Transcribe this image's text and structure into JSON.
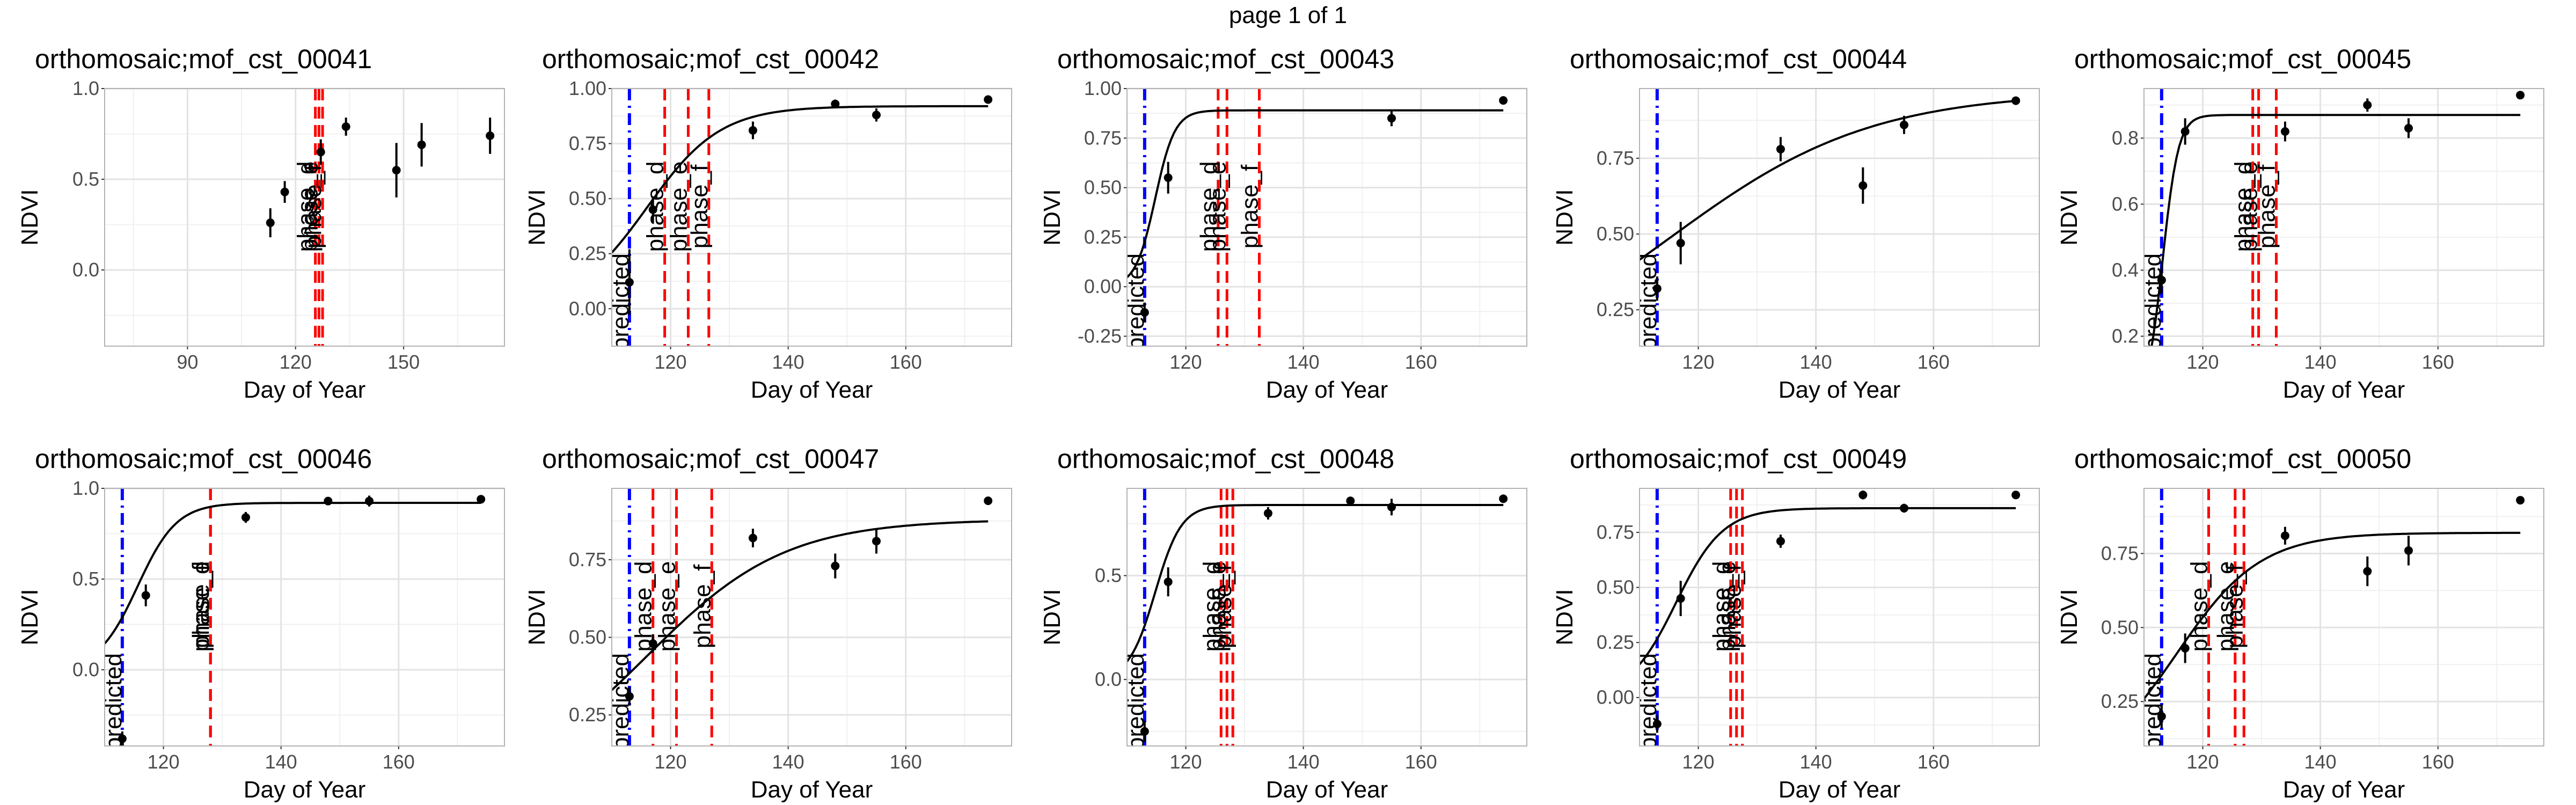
{
  "page_title": "page 1 of 1",
  "chart_data": [
    {
      "type": "scatter",
      "title": "orthomosaic;mof_cst_00041",
      "xlabel": "Day of Year",
      "ylabel": "NDVI",
      "xlim": [
        67,
        178
      ],
      "ylim": [
        -0.42,
        1.0
      ],
      "xticks": [
        90,
        120,
        150
      ],
      "yticks": [
        0.0,
        0.5,
        1.0
      ],
      "ytick_labels": [
        "0.0",
        "0.5",
        "1.0"
      ],
      "grid": true,
      "points": [
        {
          "x": 113,
          "y": 0.26,
          "err": 0.08
        },
        {
          "x": 117,
          "y": 0.43,
          "err": 0.06
        },
        {
          "x": 127,
          "y": 0.65,
          "err": 0.07
        },
        {
          "x": 134,
          "y": 0.79,
          "err": 0.05
        },
        {
          "x": 148,
          "y": 0.55,
          "err": 0.15
        },
        {
          "x": 155,
          "y": 0.69,
          "err": 0.12
        },
        {
          "x": 174,
          "y": 0.74,
          "err": 0.1
        }
      ],
      "curve": null,
      "predicted": null,
      "phases": [
        {
          "x": 125.5,
          "label": "phase_d"
        },
        {
          "x": 126.5,
          "label": "phase_e"
        },
        {
          "x": 127.5,
          "label": "phase_f"
        }
      ]
    },
    {
      "type": "scatter",
      "title": "orthomosaic;mof_cst_00042",
      "xlabel": "Day of Year",
      "ylabel": "NDVI",
      "xlim": [
        110,
        178
      ],
      "ylim": [
        -0.17,
        1.0
      ],
      "xticks": [
        120,
        140,
        160
      ],
      "yticks": [
        0.0,
        0.25,
        0.5,
        0.75,
        1.0
      ],
      "ytick_labels": [
        "0.00",
        "0.25",
        "0.50",
        "0.75",
        "1.00"
      ],
      "grid": true,
      "points": [
        {
          "x": 113,
          "y": 0.12,
          "err": 0.15
        },
        {
          "x": 117,
          "y": 0.45,
          "err": 0.06
        },
        {
          "x": 134,
          "y": 0.81,
          "err": 0.04
        },
        {
          "x": 148,
          "y": 0.93,
          "err": 0.02
        },
        {
          "x": 155,
          "y": 0.88,
          "err": 0.03
        },
        {
          "x": 174,
          "y": 0.95,
          "err": 0.01
        }
      ],
      "curve": {
        "xmin": 110,
        "xmax": 174,
        "L": 0.92,
        "k": 0.16,
        "x0": 116
      },
      "predicted": {
        "x": 113,
        "label": "predicted"
      },
      "phases": [
        {
          "x": 119,
          "label": "phase_d"
        },
        {
          "x": 123,
          "label": "phase_e"
        },
        {
          "x": 126.5,
          "label": "phase_f"
        }
      ]
    },
    {
      "type": "scatter",
      "title": "orthomosaic;mof_cst_00043",
      "xlabel": "Day of Year",
      "ylabel": "NDVI",
      "xlim": [
        110,
        178
      ],
      "ylim": [
        -0.3,
        1.0
      ],
      "xticks": [
        120,
        140,
        160
      ],
      "yticks": [
        -0.25,
        0.0,
        0.25,
        0.5,
        0.75,
        1.0
      ],
      "ytick_labels": [
        "-0.25",
        "0.00",
        "0.25",
        "0.50",
        "0.75",
        "1.00"
      ],
      "grid": true,
      "points": [
        {
          "x": 113,
          "y": -0.13,
          "err": 0.05
        },
        {
          "x": 117,
          "y": 0.55,
          "err": 0.08
        },
        {
          "x": 155,
          "y": 0.85,
          "err": 0.04
        },
        {
          "x": 174,
          "y": 0.94,
          "err": 0.01
        }
      ],
      "curve": {
        "xmin": 110,
        "xmax": 174,
        "L": 0.89,
        "k": 0.6,
        "x0": 114.8
      },
      "predicted": {
        "x": 113,
        "label": "predicted"
      },
      "phases": [
        {
          "x": 125.5,
          "label": "phase_d"
        },
        {
          "x": 127,
          "label": "phase_e"
        },
        {
          "x": 132.5,
          "label": "phase_f"
        }
      ]
    },
    {
      "type": "scatter",
      "title": "orthomosaic;mof_cst_00044",
      "xlabel": "Day of Year",
      "ylabel": "NDVI",
      "xlim": [
        110,
        178
      ],
      "ylim": [
        0.13,
        0.98
      ],
      "xticks": [
        120,
        140,
        160
      ],
      "yticks": [
        0.25,
        0.5,
        0.75
      ],
      "ytick_labels": [
        "0.25",
        "0.50",
        "0.75"
      ],
      "grid": true,
      "points": [
        {
          "x": 113,
          "y": 0.32,
          "err": 0.04
        },
        {
          "x": 117,
          "y": 0.47,
          "err": 0.07
        },
        {
          "x": 134,
          "y": 0.78,
          "err": 0.04
        },
        {
          "x": 148,
          "y": 0.66,
          "err": 0.06
        },
        {
          "x": 155,
          "y": 0.86,
          "err": 0.03
        },
        {
          "x": 174,
          "y": 0.94,
          "err": 0.01
        }
      ],
      "curve": {
        "xmin": 110,
        "xmax": 174,
        "L": 0.97,
        "k": 0.058,
        "x0": 115
      },
      "predicted": {
        "x": 113,
        "label": "predicted"
      },
      "phases": []
    },
    {
      "type": "scatter",
      "title": "orthomosaic;mof_cst_00045",
      "xlabel": "Day of Year",
      "ylabel": "NDVI",
      "xlim": [
        110,
        178
      ],
      "ylim": [
        0.17,
        0.95
      ],
      "xticks": [
        120,
        140,
        160
      ],
      "yticks": [
        0.2,
        0.4,
        0.6,
        0.8
      ],
      "ytick_labels": [
        "0.2",
        "0.4",
        "0.6",
        "0.8"
      ],
      "grid": true,
      "points": [
        {
          "x": 113,
          "y": 0.37,
          "err": 0.04
        },
        {
          "x": 117,
          "y": 0.82,
          "err": 0.04
        },
        {
          "x": 134,
          "y": 0.82,
          "err": 0.03
        },
        {
          "x": 148,
          "y": 0.9,
          "err": 0.02
        },
        {
          "x": 155,
          "y": 0.83,
          "err": 0.03
        },
        {
          "x": 174,
          "y": 0.93,
          "err": 0.01
        }
      ],
      "curve": {
        "xmin": 110,
        "xmax": 174,
        "L": 0.87,
        "k": 0.75,
        "x0": 113.2
      },
      "predicted": {
        "x": 113,
        "label": "predicted"
      },
      "phases": [
        {
          "x": 128.5,
          "label": "phase_d"
        },
        {
          "x": 129.5,
          "label": "phase_e"
        },
        {
          "x": 132.5,
          "label": "phase_f"
        }
      ]
    },
    {
      "type": "scatter",
      "title": "orthomosaic;mof_cst_00046",
      "xlabel": "Day of Year",
      "ylabel": "NDVI",
      "xlim": [
        110,
        178
      ],
      "ylim": [
        -0.42,
        1.0
      ],
      "xticks": [
        120,
        140,
        160
      ],
      "yticks": [
        0.0,
        0.5,
        1.0
      ],
      "ytick_labels": [
        "0.0",
        "0.5",
        "1.0"
      ],
      "grid": true,
      "points": [
        {
          "x": 113,
          "y": -0.38,
          "err": 0.04
        },
        {
          "x": 117,
          "y": 0.41,
          "err": 0.06
        },
        {
          "x": 134,
          "y": 0.84,
          "err": 0.03
        },
        {
          "x": 148,
          "y": 0.93,
          "err": 0.02
        },
        {
          "x": 155,
          "y": 0.93,
          "err": 0.03
        },
        {
          "x": 174,
          "y": 0.94,
          "err": 0.01
        }
      ],
      "curve": {
        "xmin": 110,
        "xmax": 174,
        "L": 0.92,
        "k": 0.3,
        "x0": 115.6
      },
      "predicted": {
        "x": 113,
        "label": "predicted"
      },
      "phases": [
        {
          "x": 128,
          "label": "phase_d"
        },
        {
          "x": 128,
          "label": "phase_e"
        },
        {
          "x": 128,
          "label": "phase_f"
        }
      ]
    },
    {
      "type": "scatter",
      "title": "orthomosaic;mof_cst_00047",
      "xlabel": "Day of Year",
      "ylabel": "NDVI",
      "xlim": [
        110,
        178
      ],
      "ylim": [
        0.15,
        0.98
      ],
      "xticks": [
        120,
        140,
        160
      ],
      "yticks": [
        0.25,
        0.5,
        0.75
      ],
      "ytick_labels": [
        "0.25",
        "0.50",
        "0.75"
      ],
      "grid": true,
      "points": [
        {
          "x": 113,
          "y": 0.31,
          "err": 0.03
        },
        {
          "x": 117,
          "y": 0.48,
          "err": 0.03
        },
        {
          "x": 134,
          "y": 0.82,
          "err": 0.03
        },
        {
          "x": 148,
          "y": 0.73,
          "err": 0.04
        },
        {
          "x": 155,
          "y": 0.81,
          "err": 0.04
        },
        {
          "x": 174,
          "y": 0.94,
          "err": 0.01
        }
      ],
      "curve": {
        "xmin": 110,
        "xmax": 174,
        "L": 0.88,
        "k": 0.085,
        "x0": 116
      },
      "predicted": {
        "x": 113,
        "label": "predicted"
      },
      "phases": [
        {
          "x": 117,
          "label": "phase_d"
        },
        {
          "x": 121,
          "label": "phase_e"
        },
        {
          "x": 127,
          "label": "phase_f"
        }
      ]
    },
    {
      "type": "scatter",
      "title": "orthomosaic;mof_cst_00048",
      "xlabel": "Day of Year",
      "ylabel": "NDVI",
      "xlim": [
        110,
        178
      ],
      "ylim": [
        -0.32,
        0.92
      ],
      "xticks": [
        120,
        140,
        160
      ],
      "yticks": [
        0.0,
        0.5
      ],
      "ytick_labels": [
        "0.0",
        "0.5"
      ],
      "grid": true,
      "points": [
        {
          "x": 113,
          "y": -0.25,
          "err": 0.05
        },
        {
          "x": 117,
          "y": 0.47,
          "err": 0.07
        },
        {
          "x": 134,
          "y": 0.8,
          "err": 0.03
        },
        {
          "x": 148,
          "y": 0.86,
          "err": 0.02
        },
        {
          "x": 155,
          "y": 0.83,
          "err": 0.04
        },
        {
          "x": 174,
          "y": 0.87,
          "err": 0.01
        }
      ],
      "curve": {
        "xmin": 110,
        "xmax": 174,
        "L": 0.84,
        "k": 0.45,
        "x0": 114.8
      },
      "predicted": {
        "x": 113,
        "label": "predicted"
      },
      "phases": [
        {
          "x": 126,
          "label": "phase_d"
        },
        {
          "x": 127,
          "label": "phase_e"
        },
        {
          "x": 128,
          "label": "phase_f"
        }
      ]
    },
    {
      "type": "scatter",
      "title": "orthomosaic;mof_cst_00049",
      "xlabel": "Day of Year",
      "ylabel": "NDVI",
      "xlim": [
        110,
        178
      ],
      "ylim": [
        -0.22,
        0.95
      ],
      "xticks": [
        120,
        140,
        160
      ],
      "yticks": [
        0.0,
        0.25,
        0.5,
        0.75
      ],
      "ytick_labels": [
        "0.00",
        "0.25",
        "0.50",
        "0.75"
      ],
      "grid": true,
      "points": [
        {
          "x": 113,
          "y": -0.12,
          "err": 0.04
        },
        {
          "x": 117,
          "y": 0.45,
          "err": 0.08
        },
        {
          "x": 134,
          "y": 0.71,
          "err": 0.03
        },
        {
          "x": 148,
          "y": 0.92,
          "err": 0.02
        },
        {
          "x": 155,
          "y": 0.86,
          "err": 0.02
        },
        {
          "x": 174,
          "y": 0.92,
          "err": 0.01
        }
      ],
      "curve": {
        "xmin": 110,
        "xmax": 174,
        "L": 0.86,
        "k": 0.25,
        "x0": 116.2
      },
      "predicted": {
        "x": 113,
        "label": "predicted"
      },
      "phases": [
        {
          "x": 125.5,
          "label": "phase_d"
        },
        {
          "x": 126.5,
          "label": "phase_e"
        },
        {
          "x": 127.5,
          "label": "phase_f"
        }
      ]
    },
    {
      "type": "scatter",
      "title": "orthomosaic;mof_cst_00050",
      "xlabel": "Day of Year",
      "ylabel": "NDVI",
      "xlim": [
        110,
        178
      ],
      "ylim": [
        0.1,
        0.97
      ],
      "xticks": [
        120,
        140,
        160
      ],
      "yticks": [
        0.25,
        0.5,
        0.75
      ],
      "ytick_labels": [
        "0.25",
        "0.50",
        "0.75"
      ],
      "grid": true,
      "points": [
        {
          "x": 113,
          "y": 0.2,
          "err": 0.04
        },
        {
          "x": 117,
          "y": 0.43,
          "err": 0.05
        },
        {
          "x": 134,
          "y": 0.81,
          "err": 0.03
        },
        {
          "x": 148,
          "y": 0.69,
          "err": 0.05
        },
        {
          "x": 155,
          "y": 0.76,
          "err": 0.05
        },
        {
          "x": 174,
          "y": 0.93,
          "err": 0.01
        }
      ],
      "curve": {
        "xmin": 110,
        "xmax": 174,
        "L": 0.82,
        "k": 0.14,
        "x0": 115.5
      },
      "predicted": {
        "x": 113,
        "label": "predicted"
      },
      "phases": [
        {
          "x": 121,
          "label": "phase_d"
        },
        {
          "x": 125.5,
          "label": "phase_e"
        },
        {
          "x": 127,
          "label": "phase_f"
        }
      ]
    }
  ]
}
